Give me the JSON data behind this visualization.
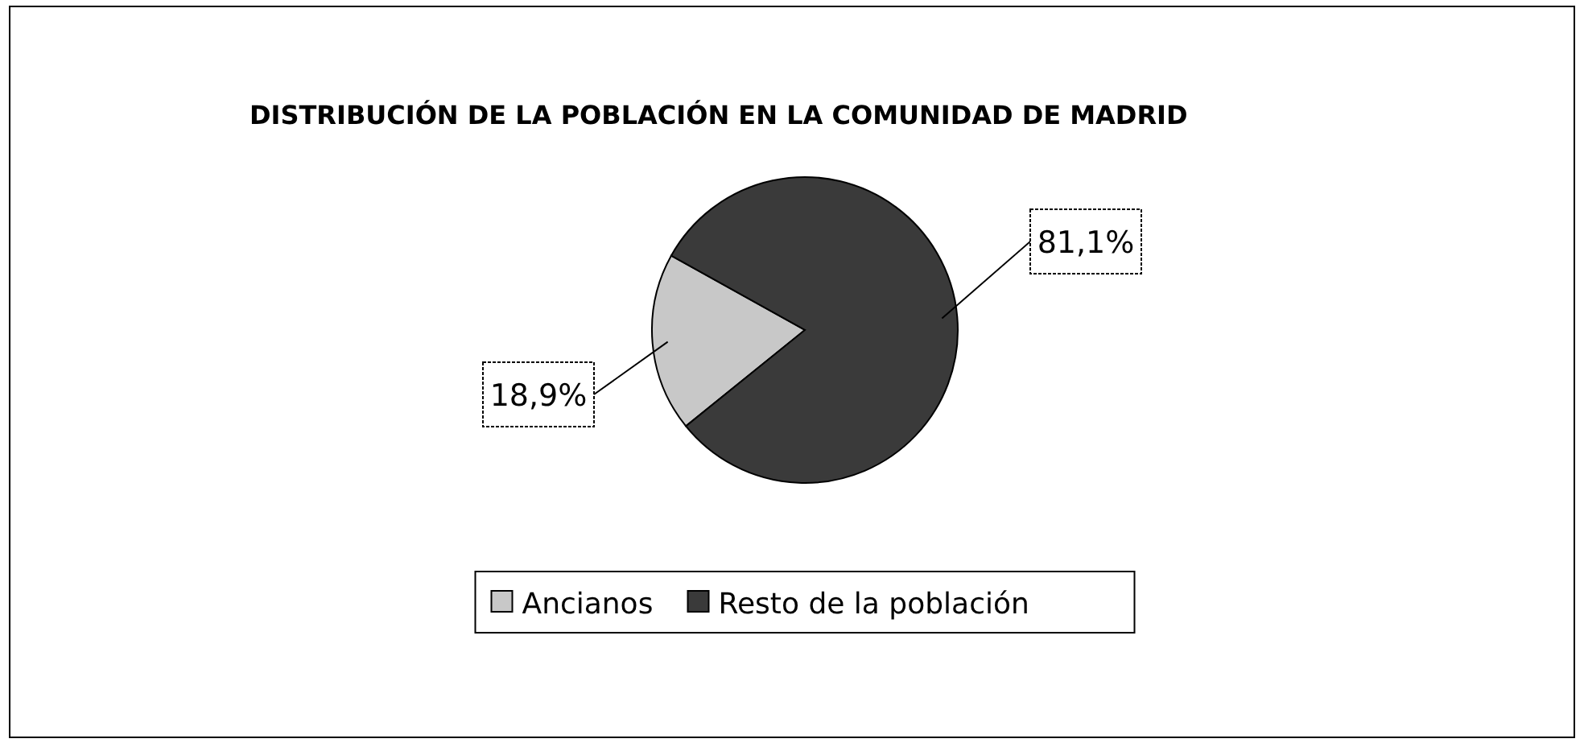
{
  "chart_data": {
    "type": "pie",
    "title": "DISTRIBUCIÓN DE LA POBLACIÓN EN LA COMUNIDAD DE MADRID",
    "categories": [
      "Ancianos",
      "Resto de la población"
    ],
    "values": [
      18.9,
      81.1
    ],
    "colors": [
      "#c8c8c8",
      "#3a3a3a"
    ],
    "value_labels": [
      "18,9%",
      "81,1%"
    ],
    "legend": "bottom"
  }
}
